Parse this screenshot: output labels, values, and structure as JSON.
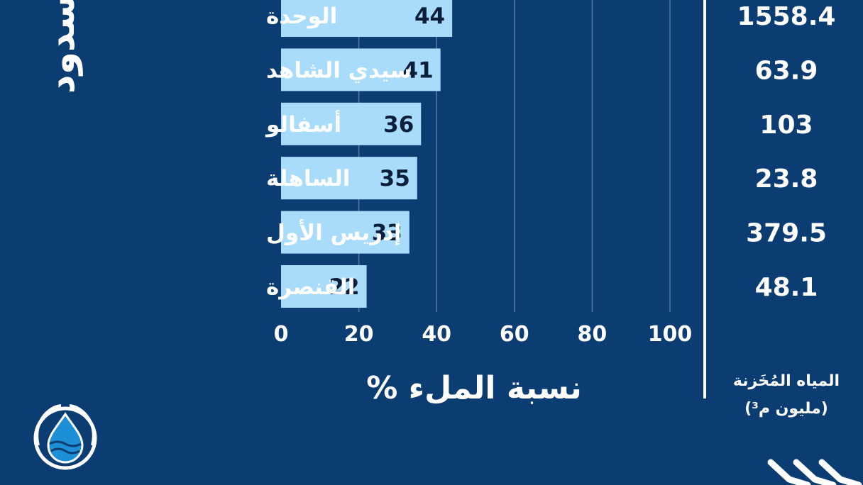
{
  "chart_data": {
    "type": "bar",
    "orientation": "horizontal",
    "categories": [
      "الوحدة",
      "سيدي الشاهد",
      "أسفالو",
      "الساهلة",
      "إدريس الأول",
      "القنصرة"
    ],
    "values": [
      44,
      41,
      36,
      35,
      33,
      22
    ],
    "xlabel": "نسبة الملء %",
    "xlim": [
      0,
      100
    ],
    "xticks": [
      0,
      20,
      40,
      60,
      80,
      100
    ],
    "grid": true,
    "bar_color": "#a9dcfb",
    "stored_water": {
      "title_line1": "المياه المُخَزنة",
      "title_line2": "(مليون م³)",
      "values": [
        "1558.4",
        "63.9",
        "103",
        "23.8",
        "379.5",
        "48.1"
      ]
    }
  },
  "side_title_fragment": "سدود",
  "colors": {
    "background": "#0b3d73",
    "bar": "#a9dcfb",
    "gridline": "#4f7ba6",
    "text": "#ffffff",
    "value_text": "#0b1f3a",
    "logo": "#ffffff",
    "logo_water": "#1c8fd6"
  },
  "icons": {
    "logo": "water-drop-logo-icon",
    "chevrons": "chevron-arrows-icon"
  }
}
